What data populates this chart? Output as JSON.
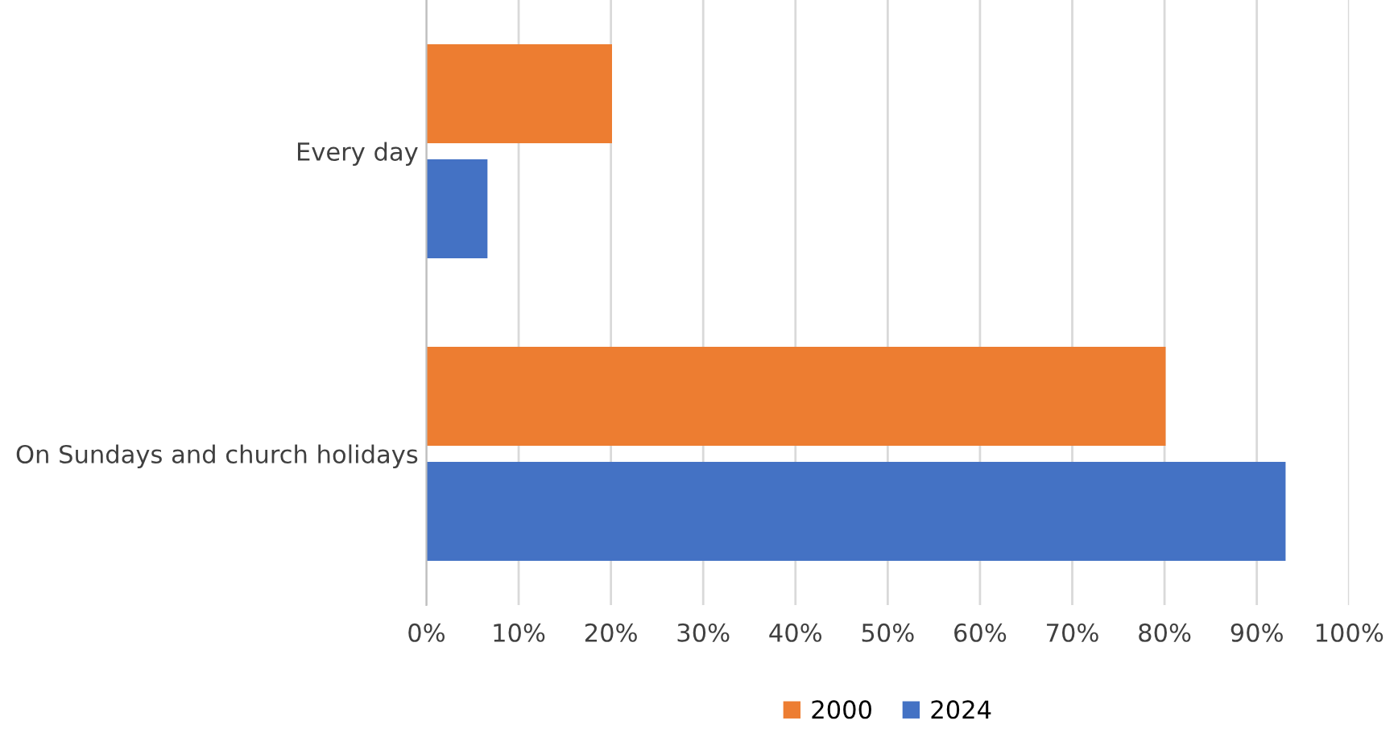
{
  "chart_data": {
    "type": "bar",
    "orientation": "horizontal",
    "categories": [
      "Every day",
      "On Sundays and church holidays"
    ],
    "series": [
      {
        "name": "2000",
        "color": "#ed7d31",
        "values": [
          20,
          80
        ]
      },
      {
        "name": "2024",
        "color": "#4472c4",
        "values": [
          6.5,
          93
        ]
      }
    ],
    "xlim": [
      0,
      100
    ],
    "xticks": [
      {
        "value": 0,
        "label": "0%"
      },
      {
        "value": 10,
        "label": "10%"
      },
      {
        "value": 20,
        "label": "20%"
      },
      {
        "value": 30,
        "label": "30%"
      },
      {
        "value": 40,
        "label": "40%"
      },
      {
        "value": 50,
        "label": "50%"
      },
      {
        "value": 60,
        "label": "60%"
      },
      {
        "value": 70,
        "label": "70%"
      },
      {
        "value": 80,
        "label": "80%"
      },
      {
        "value": 90,
        "label": "90%"
      },
      {
        "value": 100,
        "label": "100%"
      }
    ],
    "grid": "x",
    "legend": "bottom"
  }
}
